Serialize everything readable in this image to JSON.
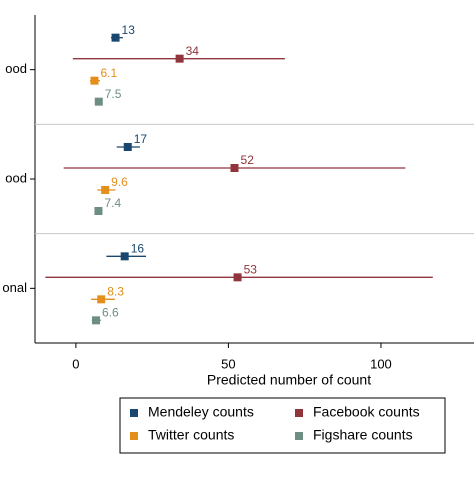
{
  "chart_data": {
    "type": "dot",
    "categories": [
      "ood",
      "ood",
      "onal"
    ],
    "xlabel": "Predicted number of count",
    "xlim": [
      -13.4,
      130.5
    ],
    "xticks": [
      0,
      50,
      100
    ],
    "series": [
      {
        "name": "Mendeley counts",
        "color": "#1a476f",
        "values": [
          13,
          17,
          16
        ],
        "lower": [
          11.5,
          13.4,
          10
        ],
        "upper": [
          15.4,
          21,
          23
        ]
      },
      {
        "name": "Facebook counts",
        "color": "#90353b",
        "values": [
          34,
          52,
          53
        ],
        "lower": [
          -1,
          -4,
          -10
        ],
        "upper": [
          68.5,
          108,
          117
        ]
      },
      {
        "name": "Twitter counts",
        "color": "#e48e1c",
        "values": [
          6.1,
          9.6,
          8.3
        ],
        "lower": [
          4.6,
          7,
          5
        ],
        "upper": [
          7.9,
          13,
          12.8
        ]
      },
      {
        "name": "Figshare counts",
        "color": "#6e8e84",
        "values": [
          7.5,
          7.4,
          6.6
        ],
        "lower": [
          6.5,
          6.3,
          5.2
        ],
        "upper": [
          8.5,
          8.5,
          8.2
        ]
      }
    ]
  }
}
